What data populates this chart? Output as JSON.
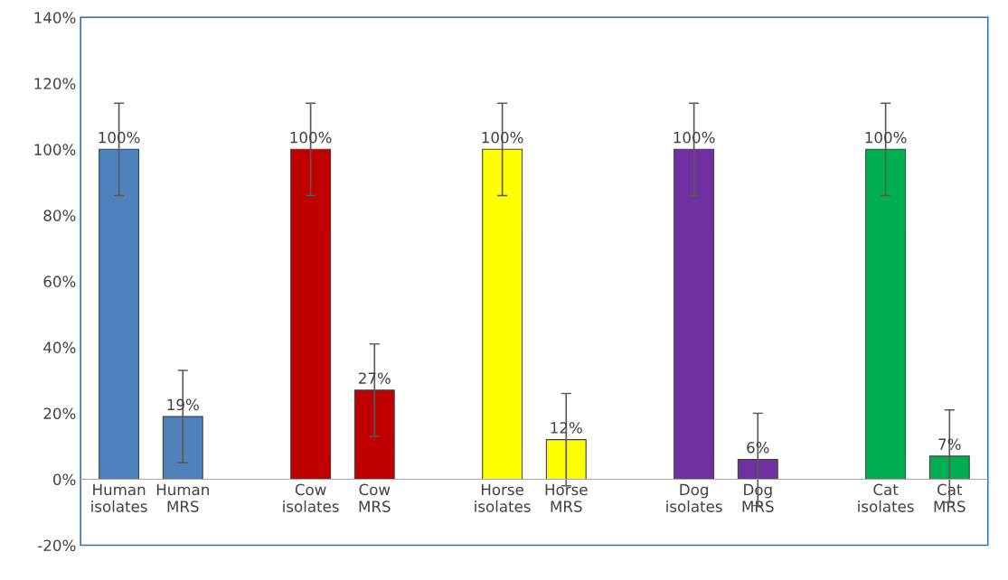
{
  "chart_data": {
    "type": "bar",
    "categories": [
      "Human isolates",
      "Human MRS",
      null,
      "Cow isolates",
      "Cow MRS",
      null,
      "Horse isolates",
      "Horse MRS",
      null,
      "Dog isolates",
      "Dog MRS",
      null,
      "Cat isolates",
      "Cat MRS"
    ],
    "values": [
      100,
      19,
      null,
      100,
      27,
      null,
      100,
      12,
      null,
      100,
      6,
      null,
      100,
      7
    ],
    "colors": [
      "#4f81bd",
      "#4f81bd",
      "#4f81bd",
      "#c00000",
      "#c00000",
      "#c00000",
      "#ffff00",
      "#ffff00",
      "#ffff00",
      "#7030a0",
      "#7030a0",
      "#7030a0",
      "#00b050",
      "#00b050"
    ],
    "errors": [
      14,
      14,
      null,
      14,
      14,
      null,
      14,
      14,
      null,
      14,
      14,
      null,
      14,
      14
    ],
    "value_labels": [
      "100%",
      "19%",
      null,
      "100%",
      "27%",
      null,
      "100%",
      "12%",
      null,
      "100%",
      "6%",
      null,
      "100%",
      "7%"
    ],
    "ylim": [
      -20,
      140
    ],
    "yticks": [
      {
        "value": -20,
        "label": "-20%"
      },
      {
        "value": 0,
        "label": "0%"
      },
      {
        "value": 20,
        "label": "20%"
      },
      {
        "value": 40,
        "label": "40%"
      },
      {
        "value": 60,
        "label": "60%"
      },
      {
        "value": 80,
        "label": "80%"
      },
      {
        "value": 100,
        "label": "100%"
      },
      {
        "value": 120,
        "label": "120%"
      },
      {
        "value": 140,
        "label": "140%"
      }
    ],
    "grid": false,
    "legend": false
  }
}
